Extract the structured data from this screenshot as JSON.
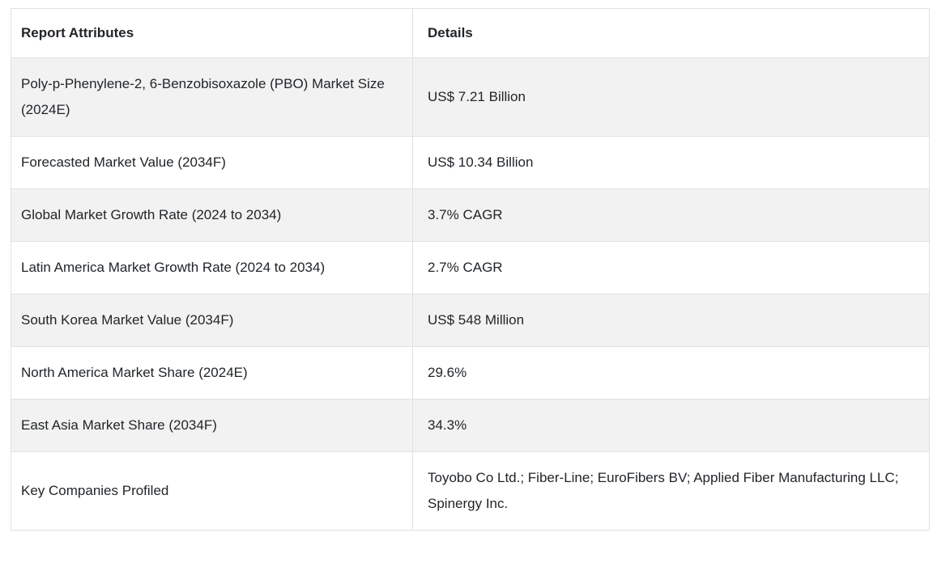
{
  "table": {
    "headers": {
      "attribute": "Report Attributes",
      "detail": "Details"
    },
    "rows": [
      {
        "attribute": "Poly-p-Phenylene-2, 6-Benzobisoxazole (PBO) Market Size (2024E)",
        "detail": "US$ 7.21 Billion"
      },
      {
        "attribute": "Forecasted Market Value (2034F)",
        "detail": "US$ 10.34 Billion"
      },
      {
        "attribute": "Global Market Growth Rate (2024 to 2034)",
        "detail": "3.7% CAGR"
      },
      {
        "attribute": "Latin America Market Growth Rate (2024 to 2034)",
        "detail": "2.7% CAGR"
      },
      {
        "attribute": "South Korea Market Value (2034F)",
        "detail": "US$ 548 Million"
      },
      {
        "attribute": "North America Market Share (2024E)",
        "detail": "29.6%"
      },
      {
        "attribute": "East Asia Market Share (2034F)",
        "detail": "34.3%"
      },
      {
        "attribute": "Key Companies Profiled",
        "detail": "Toyobo Co Ltd.; Fiber-Line; EuroFibers BV; Applied Fiber Manufacturing LLC; Spinergy Inc."
      }
    ],
    "colors": {
      "stripe": "#f2f2f2",
      "border": "#dee2e6",
      "text": "#212529"
    }
  }
}
